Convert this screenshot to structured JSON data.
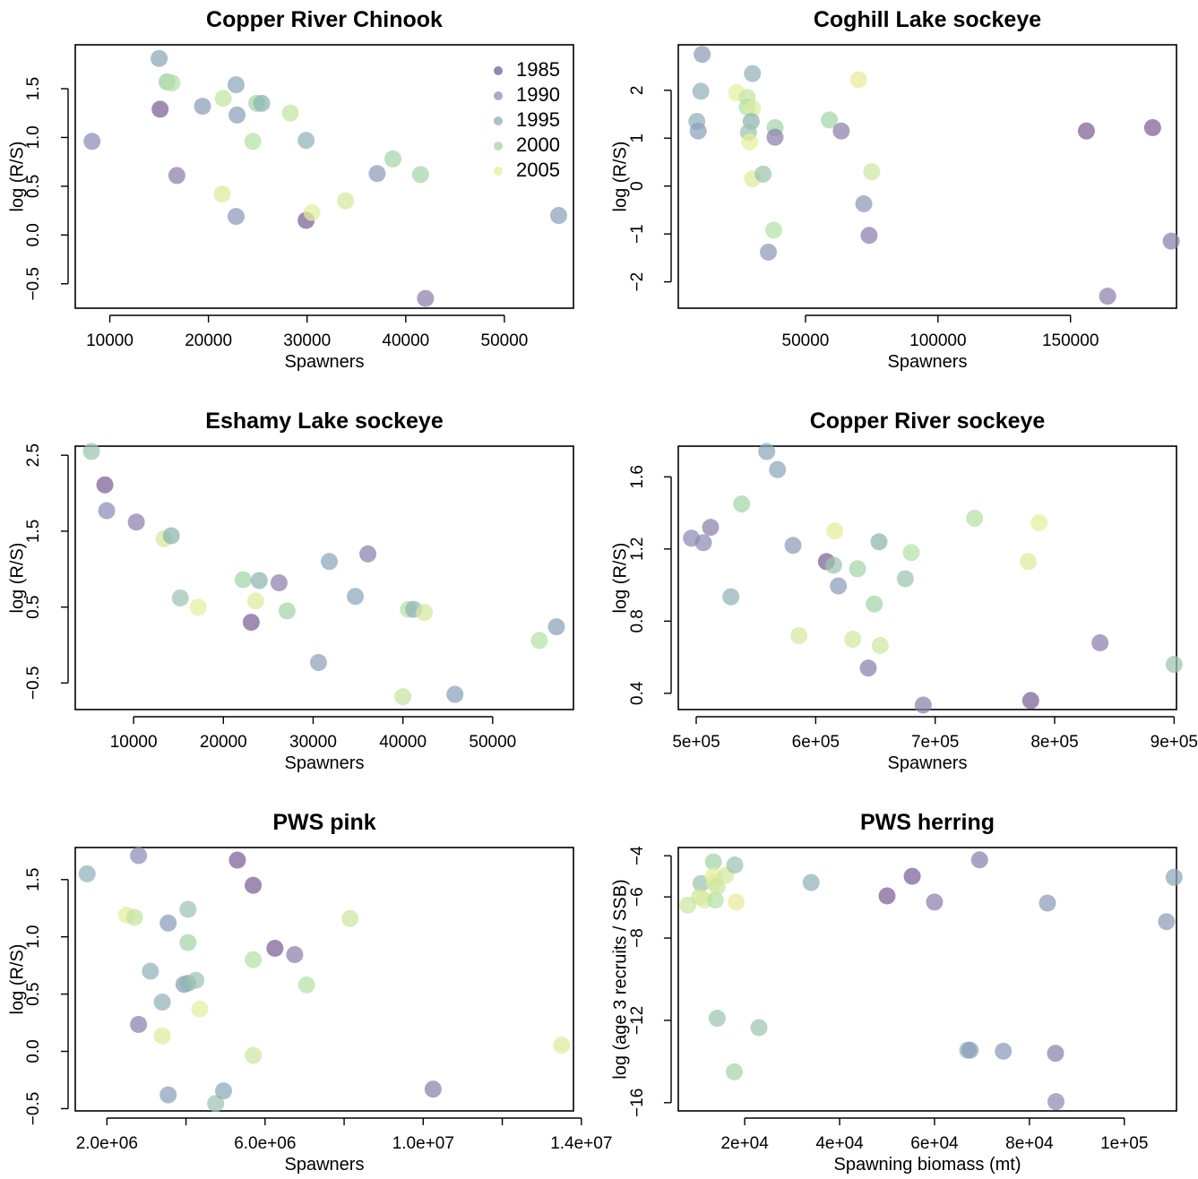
{
  "chart_data": [
    {
      "type": "scatter",
      "title": "Copper River Chinook",
      "xlabel": "Spawners",
      "ylabel": "log (R/S)",
      "xlim": [
        6500,
        57000
      ],
      "ylim": [
        -0.75,
        1.95
      ],
      "xticks": [
        10000,
        20000,
        30000,
        40000,
        50000
      ],
      "xtick_labels": [
        "10000",
        "20000",
        "30000",
        "40000",
        "50000"
      ],
      "yticks": [
        -0.5,
        0.0,
        0.5,
        1.0,
        1.5
      ],
      "ytick_labels": [
        "−0.5",
        "0.0",
        "0.5",
        "1.0",
        "1.5"
      ],
      "legend": {
        "placement": "top-right",
        "entries": [
          {
            "label": "1985",
            "color": "#6b5a8e"
          },
          {
            "label": "1990",
            "color": "#8090b0"
          },
          {
            "label": "1995",
            "color": "#88aab0"
          },
          {
            "label": "2000",
            "color": "#a0d4a6"
          },
          {
            "label": "2005",
            "color": "#e8ec9a"
          }
        ]
      },
      "points": [
        {
          "x": 8200,
          "y": 0.96,
          "c": "#8a8cb4"
        },
        {
          "x": 15000,
          "y": 1.81,
          "c": "#8aa6b4"
        },
        {
          "x": 15100,
          "y": 1.29,
          "c": "#7c5e96"
        },
        {
          "x": 15800,
          "y": 1.57,
          "c": "#9ccaa8"
        },
        {
          "x": 16300,
          "y": 1.56,
          "c": "#b4e0a6"
        },
        {
          "x": 16800,
          "y": 0.61,
          "c": "#8e7ca8"
        },
        {
          "x": 19400,
          "y": 1.32,
          "c": "#8a9cb8"
        },
        {
          "x": 21400,
          "y": 0.42,
          "c": "#dcec9c"
        },
        {
          "x": 21500,
          "y": 1.4,
          "c": "#c4e4a2"
        },
        {
          "x": 22800,
          "y": 1.54,
          "c": "#8aa6b8"
        },
        {
          "x": 22800,
          "y": 0.19,
          "c": "#8a98b8"
        },
        {
          "x": 22900,
          "y": 1.23,
          "c": "#8aa0b8"
        },
        {
          "x": 24500,
          "y": 0.96,
          "c": "#b4e0a6"
        },
        {
          "x": 24900,
          "y": 1.35,
          "c": "#a4d4a8"
        },
        {
          "x": 25400,
          "y": 1.35,
          "c": "#8cb4b0"
        },
        {
          "x": 28300,
          "y": 1.25,
          "c": "#c4e4a2"
        },
        {
          "x": 29900,
          "y": 0.97,
          "c": "#90b2b8"
        },
        {
          "x": 29900,
          "y": 0.15,
          "c": "#7c5e96"
        },
        {
          "x": 30500,
          "y": 0.23,
          "c": "#e4ee9c"
        },
        {
          "x": 33900,
          "y": 0.35,
          "c": "#d4e8a0"
        },
        {
          "x": 37100,
          "y": 0.63,
          "c": "#8a9cb8"
        },
        {
          "x": 38700,
          "y": 0.78,
          "c": "#a4d4a8"
        },
        {
          "x": 41500,
          "y": 0.62,
          "c": "#a4d4a8"
        },
        {
          "x": 42000,
          "y": -0.65,
          "c": "#8c80ac"
        },
        {
          "x": 55500,
          "y": 0.2,
          "c": "#8aa0b8"
        }
      ]
    },
    {
      "type": "scatter",
      "title": "Coghill Lake sockeye",
      "xlabel": "Spawners",
      "ylabel": "log (R/S)",
      "xlim": [
        2000,
        190000
      ],
      "ylim": [
        -2.55,
        2.95
      ],
      "xticks": [
        50000,
        100000,
        150000
      ],
      "xtick_labels": [
        "50000",
        "100000",
        "150000"
      ],
      "yticks": [
        -2,
        -1,
        0,
        1,
        2
      ],
      "ytick_labels": [
        "−2",
        "−1",
        "0",
        "1",
        "2"
      ],
      "points": [
        {
          "x": 11000,
          "y": 2.75,
          "c": "#8a9cb8"
        },
        {
          "x": 10500,
          "y": 1.98,
          "c": "#90b2b8"
        },
        {
          "x": 9000,
          "y": 1.35,
          "c": "#90b2b8"
        },
        {
          "x": 9500,
          "y": 1.15,
          "c": "#8aa0b8"
        },
        {
          "x": 30000,
          "y": 2.35,
          "c": "#90b2b8"
        },
        {
          "x": 24000,
          "y": 1.95,
          "c": "#e4ee9c"
        },
        {
          "x": 28000,
          "y": 1.85,
          "c": "#c4e4a2"
        },
        {
          "x": 28000,
          "y": 1.65,
          "c": "#b4e0a6"
        },
        {
          "x": 30000,
          "y": 1.62,
          "c": "#dcec9c"
        },
        {
          "x": 29500,
          "y": 1.35,
          "c": "#8cb4b0"
        },
        {
          "x": 28500,
          "y": 1.12,
          "c": "#9cc4b0"
        },
        {
          "x": 29000,
          "y": 0.92,
          "c": "#e8ee9c"
        },
        {
          "x": 30000,
          "y": 0.15,
          "c": "#dcec9c"
        },
        {
          "x": 34000,
          "y": 0.25,
          "c": "#9cc4b0"
        },
        {
          "x": 38500,
          "y": 1.22,
          "c": "#a4d4a8"
        },
        {
          "x": 38500,
          "y": 1.02,
          "c": "#8c80ac"
        },
        {
          "x": 38000,
          "y": -0.92,
          "c": "#b4e0a6"
        },
        {
          "x": 36000,
          "y": -1.38,
          "c": "#8a98b8"
        },
        {
          "x": 59000,
          "y": 1.38,
          "c": "#a4d4a8"
        },
        {
          "x": 63500,
          "y": 1.15,
          "c": "#8c80ac"
        },
        {
          "x": 70000,
          "y": 2.22,
          "c": "#e8ec9a"
        },
        {
          "x": 72000,
          "y": -0.37,
          "c": "#8a98b8"
        },
        {
          "x": 74000,
          "y": -1.03,
          "c": "#8c80ac"
        },
        {
          "x": 75000,
          "y": 0.3,
          "c": "#cce6a0"
        },
        {
          "x": 156000,
          "y": 1.15,
          "c": "#7c5e96"
        },
        {
          "x": 164000,
          "y": -2.3,
          "c": "#8c80ac"
        },
        {
          "x": 181000,
          "y": 1.22,
          "c": "#7c5e96"
        },
        {
          "x": 188000,
          "y": -1.15,
          "c": "#8c80ac"
        }
      ]
    },
    {
      "type": "scatter",
      "title": "Eshamy Lake sockeye",
      "xlabel": "Spawners",
      "ylabel": "log (R/S)",
      "xlim": [
        3500,
        59000
      ],
      "ylim": [
        -0.85,
        2.62
      ],
      "xticks": [
        10000,
        20000,
        30000,
        40000,
        50000
      ],
      "xtick_labels": [
        "10000",
        "20000",
        "30000",
        "40000",
        "50000"
      ],
      "yticks": [
        -0.5,
        0.5,
        1.5,
        2.5
      ],
      "ytick_labels": [
        "−0.5",
        "0.5",
        "1.5",
        "2.5"
      ],
      "points": [
        {
          "x": 5300,
          "y": 2.55,
          "c": "#9cc4b0"
        },
        {
          "x": 6800,
          "y": 2.11,
          "c": "#7c5e96"
        },
        {
          "x": 7000,
          "y": 1.77,
          "c": "#8a8cb4"
        },
        {
          "x": 10300,
          "y": 1.62,
          "c": "#8c80ac"
        },
        {
          "x": 13400,
          "y": 1.4,
          "c": "#d4e8a0"
        },
        {
          "x": 14200,
          "y": 1.44,
          "c": "#8cb4b0"
        },
        {
          "x": 15200,
          "y": 0.62,
          "c": "#9cc4b0"
        },
        {
          "x": 17200,
          "y": 0.5,
          "c": "#e4ee9c"
        },
        {
          "x": 22200,
          "y": 0.86,
          "c": "#a4d4a8"
        },
        {
          "x": 23100,
          "y": 0.3,
          "c": "#7c5e96"
        },
        {
          "x": 23600,
          "y": 0.58,
          "c": "#dcec9c"
        },
        {
          "x": 24000,
          "y": 0.85,
          "c": "#8cb4b0"
        },
        {
          "x": 26200,
          "y": 0.82,
          "c": "#8c80ac"
        },
        {
          "x": 27100,
          "y": 0.45,
          "c": "#a4d4a8"
        },
        {
          "x": 30600,
          "y": -0.23,
          "c": "#8aa0b8"
        },
        {
          "x": 31800,
          "y": 1.1,
          "c": "#8aa6b8"
        },
        {
          "x": 34700,
          "y": 0.64,
          "c": "#8aa6b8"
        },
        {
          "x": 36100,
          "y": 1.2,
          "c": "#8c80ac"
        },
        {
          "x": 40000,
          "y": -0.68,
          "c": "#c4e4a2"
        },
        {
          "x": 40600,
          "y": 0.47,
          "c": "#b4e0a6"
        },
        {
          "x": 41200,
          "y": 0.47,
          "c": "#90b2b8"
        },
        {
          "x": 42400,
          "y": 0.43,
          "c": "#d4e8a0"
        },
        {
          "x": 45800,
          "y": -0.65,
          "c": "#8aa0b8"
        },
        {
          "x": 55200,
          "y": 0.06,
          "c": "#b4e0a6"
        },
        {
          "x": 57100,
          "y": 0.24,
          "c": "#8aa0b8"
        }
      ]
    },
    {
      "type": "scatter",
      "title": "Copper River sockeye",
      "xlabel": "Spawners",
      "ylabel": "log (R/S)",
      "xlim": [
        485000,
        902000
      ],
      "ylim": [
        0.31,
        1.77
      ],
      "xticks": [
        500000,
        600000,
        700000,
        800000,
        900000
      ],
      "xtick_labels": [
        "5e+05",
        "6e+05",
        "7e+05",
        "8e+05",
        "9e+05"
      ],
      "yticks": [
        0.4,
        0.8,
        1.2,
        1.6
      ],
      "ytick_labels": [
        "0.4",
        "0.8",
        "1.2",
        "1.6"
      ],
      "points": [
        {
          "x": 496000,
          "y": 1.26,
          "c": "#8a8cb4"
        },
        {
          "x": 506000,
          "y": 1.235,
          "c": "#8a8cb4"
        },
        {
          "x": 512000,
          "y": 1.32,
          "c": "#8c80ac"
        },
        {
          "x": 529000,
          "y": 0.935,
          "c": "#90b2b8"
        },
        {
          "x": 538000,
          "y": 1.45,
          "c": "#a4d4a8"
        },
        {
          "x": 559000,
          "y": 1.74,
          "c": "#8aa6b8"
        },
        {
          "x": 568000,
          "y": 1.64,
          "c": "#8aa6b8"
        },
        {
          "x": 581000,
          "y": 1.22,
          "c": "#8a9cb8"
        },
        {
          "x": 586000,
          "y": 0.72,
          "c": "#d4e8a0"
        },
        {
          "x": 609000,
          "y": 1.13,
          "c": "#7c5e96"
        },
        {
          "x": 616000,
          "y": 1.3,
          "c": "#e8ec9a"
        },
        {
          "x": 615000,
          "y": 1.11,
          "c": "#9cc4b0"
        },
        {
          "x": 619000,
          "y": 0.995,
          "c": "#8a9cb8"
        },
        {
          "x": 631000,
          "y": 0.7,
          "c": "#d4e8a0"
        },
        {
          "x": 635000,
          "y": 1.09,
          "c": "#a4d4a8"
        },
        {
          "x": 644000,
          "y": 0.54,
          "c": "#8c80ac"
        },
        {
          "x": 649000,
          "y": 0.895,
          "c": "#a4d4a8"
        },
        {
          "x": 653000,
          "y": 1.24,
          "c": "#8cb4b0"
        },
        {
          "x": 654000,
          "y": 0.665,
          "c": "#cce6a0"
        },
        {
          "x": 675000,
          "y": 1.035,
          "c": "#9cc4b0"
        },
        {
          "x": 680000,
          "y": 1.18,
          "c": "#b4e0a6"
        },
        {
          "x": 690000,
          "y": 0.335,
          "c": "#8c80ac"
        },
        {
          "x": 733000,
          "y": 1.37,
          "c": "#b4e0a6"
        },
        {
          "x": 778000,
          "y": 1.13,
          "c": "#dcec9c"
        },
        {
          "x": 780000,
          "y": 0.36,
          "c": "#7c5e96"
        },
        {
          "x": 787000,
          "y": 1.345,
          "c": "#e4ee9c"
        },
        {
          "x": 838000,
          "y": 0.68,
          "c": "#8c80ac"
        },
        {
          "x": 900000,
          "y": 0.56,
          "c": "#9cc4b0"
        }
      ]
    },
    {
      "type": "scatter",
      "title": "PWS pink",
      "xlabel": "Spawners",
      "ylabel": "log (R/S)",
      "xlim": [
        1200000,
        13800000
      ],
      "ylim": [
        -0.52,
        1.78
      ],
      "xticks": [
        2000000,
        4000000,
        6000000,
        8000000,
        10000000,
        12000000,
        14000000
      ],
      "xtick_labels": [
        "2.0e+06",
        "",
        "6.0e+06",
        "",
        "1.0e+07",
        "",
        "1.4e+07"
      ],
      "yticks": [
        -0.5,
        0.0,
        0.5,
        1.0,
        1.5
      ],
      "ytick_labels": [
        "−0.5",
        "0.0",
        "0.5",
        "1.0",
        "1.5"
      ],
      "points": [
        {
          "x": 1500000,
          "y": 1.55,
          "c": "#90b2b8"
        },
        {
          "x": 2800000,
          "y": 1.71,
          "c": "#8a8cb4"
        },
        {
          "x": 2500000,
          "y": 1.19,
          "c": "#e8ec9a"
        },
        {
          "x": 2700000,
          "y": 1.17,
          "c": "#c4e4a2"
        },
        {
          "x": 2800000,
          "y": 0.235,
          "c": "#8c80ac"
        },
        {
          "x": 3100000,
          "y": 0.7,
          "c": "#90b2b8"
        },
        {
          "x": 3400000,
          "y": 0.43,
          "c": "#90b2b8"
        },
        {
          "x": 3400000,
          "y": 0.135,
          "c": "#dcec9c"
        },
        {
          "x": 3550000,
          "y": 1.12,
          "c": "#8a9cb8"
        },
        {
          "x": 3550000,
          "y": -0.38,
          "c": "#8aa0b8"
        },
        {
          "x": 3950000,
          "y": 0.585,
          "c": "#8a9cb8"
        },
        {
          "x": 4050000,
          "y": 1.24,
          "c": "#9cc4b0"
        },
        {
          "x": 4050000,
          "y": 0.95,
          "c": "#a4d4a8"
        },
        {
          "x": 4050000,
          "y": 0.595,
          "c": "#8cb4b0"
        },
        {
          "x": 4250000,
          "y": 0.62,
          "c": "#9cc4b0"
        },
        {
          "x": 4350000,
          "y": 0.37,
          "c": "#e4ee9c"
        },
        {
          "x": 4750000,
          "y": -0.455,
          "c": "#9cc4b0"
        },
        {
          "x": 4950000,
          "y": -0.345,
          "c": "#8aa6b8"
        },
        {
          "x": 5300000,
          "y": 1.67,
          "c": "#7c5e96"
        },
        {
          "x": 5700000,
          "y": 1.45,
          "c": "#7c5e96"
        },
        {
          "x": 5700000,
          "y": 0.8,
          "c": "#b4e0a6"
        },
        {
          "x": 5700000,
          "y": -0.035,
          "c": "#cce6a0"
        },
        {
          "x": 6250000,
          "y": 0.9,
          "c": "#7c5e96"
        },
        {
          "x": 6750000,
          "y": 0.845,
          "c": "#8c80ac"
        },
        {
          "x": 7050000,
          "y": 0.58,
          "c": "#b4e0a6"
        },
        {
          "x": 8150000,
          "y": 1.16,
          "c": "#cce6a0"
        },
        {
          "x": 10250000,
          "y": -0.33,
          "c": "#8c80ac"
        },
        {
          "x": 13500000,
          "y": 0.055,
          "c": "#dcec9c"
        }
      ]
    },
    {
      "type": "scatter",
      "title": "PWS herring",
      "xlabel": "Spawning biomass (mt)",
      "ylabel": "log (age 3 recruits / SSB)",
      "xlim": [
        6000,
        111000
      ],
      "ylim": [
        -16.4,
        -3.6
      ],
      "xticks": [
        20000,
        40000,
        60000,
        80000,
        100000
      ],
      "xtick_labels": [
        "2e+04",
        "4e+04",
        "6e+04",
        "8e+04",
        "1e+05"
      ],
      "yticks": [
        -16,
        -12,
        -8,
        -6,
        -4
      ],
      "ytick_labels": [
        "−16",
        "−12",
        "−8",
        "−6",
        "−4"
      ],
      "points": [
        {
          "x": 8000,
          "y": -6.4,
          "c": "#cce6a0"
        },
        {
          "x": 10800,
          "y": -5.35,
          "c": "#9cc4b0"
        },
        {
          "x": 10500,
          "y": -6.0,
          "c": "#cce6a0"
        },
        {
          "x": 11500,
          "y": -6.15,
          "c": "#dcec9c"
        },
        {
          "x": 13400,
          "y": -4.3,
          "c": "#a4d4a8"
        },
        {
          "x": 13400,
          "y": -5.0,
          "c": "#e4ee9c"
        },
        {
          "x": 13600,
          "y": -5.3,
          "c": "#dcec9c"
        },
        {
          "x": 13800,
          "y": -6.15,
          "c": "#b4e0a6"
        },
        {
          "x": 14200,
          "y": -5.5,
          "c": "#cce6a0"
        },
        {
          "x": 14200,
          "y": -11.9,
          "c": "#9cc4b0"
        },
        {
          "x": 16000,
          "y": -4.95,
          "c": "#d4e8a0"
        },
        {
          "x": 17900,
          "y": -4.45,
          "c": "#9cc4b0"
        },
        {
          "x": 18200,
          "y": -6.25,
          "c": "#e8ec9a"
        },
        {
          "x": 17800,
          "y": -14.5,
          "c": "#a4d4a8"
        },
        {
          "x": 23000,
          "y": -12.35,
          "c": "#9cc4b0"
        },
        {
          "x": 34000,
          "y": -5.3,
          "c": "#90b2b8"
        },
        {
          "x": 50000,
          "y": -5.95,
          "c": "#7c5e96"
        },
        {
          "x": 55300,
          "y": -5.0,
          "c": "#7c5e96"
        },
        {
          "x": 60000,
          "y": -6.25,
          "c": "#8c80ac"
        },
        {
          "x": 67000,
          "y": -13.45,
          "c": "#90b2b8"
        },
        {
          "x": 67500,
          "y": -13.45,
          "c": "#8aa0b8"
        },
        {
          "x": 69500,
          "y": -4.2,
          "c": "#8c80ac"
        },
        {
          "x": 74500,
          "y": -13.5,
          "c": "#8a98b8"
        },
        {
          "x": 83800,
          "y": -6.3,
          "c": "#8a9cb8"
        },
        {
          "x": 85500,
          "y": -13.6,
          "c": "#8c80ac"
        },
        {
          "x": 85600,
          "y": -15.95,
          "c": "#8a8cb4"
        },
        {
          "x": 108900,
          "y": -7.2,
          "c": "#8a9cb8"
        },
        {
          "x": 110500,
          "y": -5.05,
          "c": "#8aa6b8"
        }
      ]
    }
  ]
}
